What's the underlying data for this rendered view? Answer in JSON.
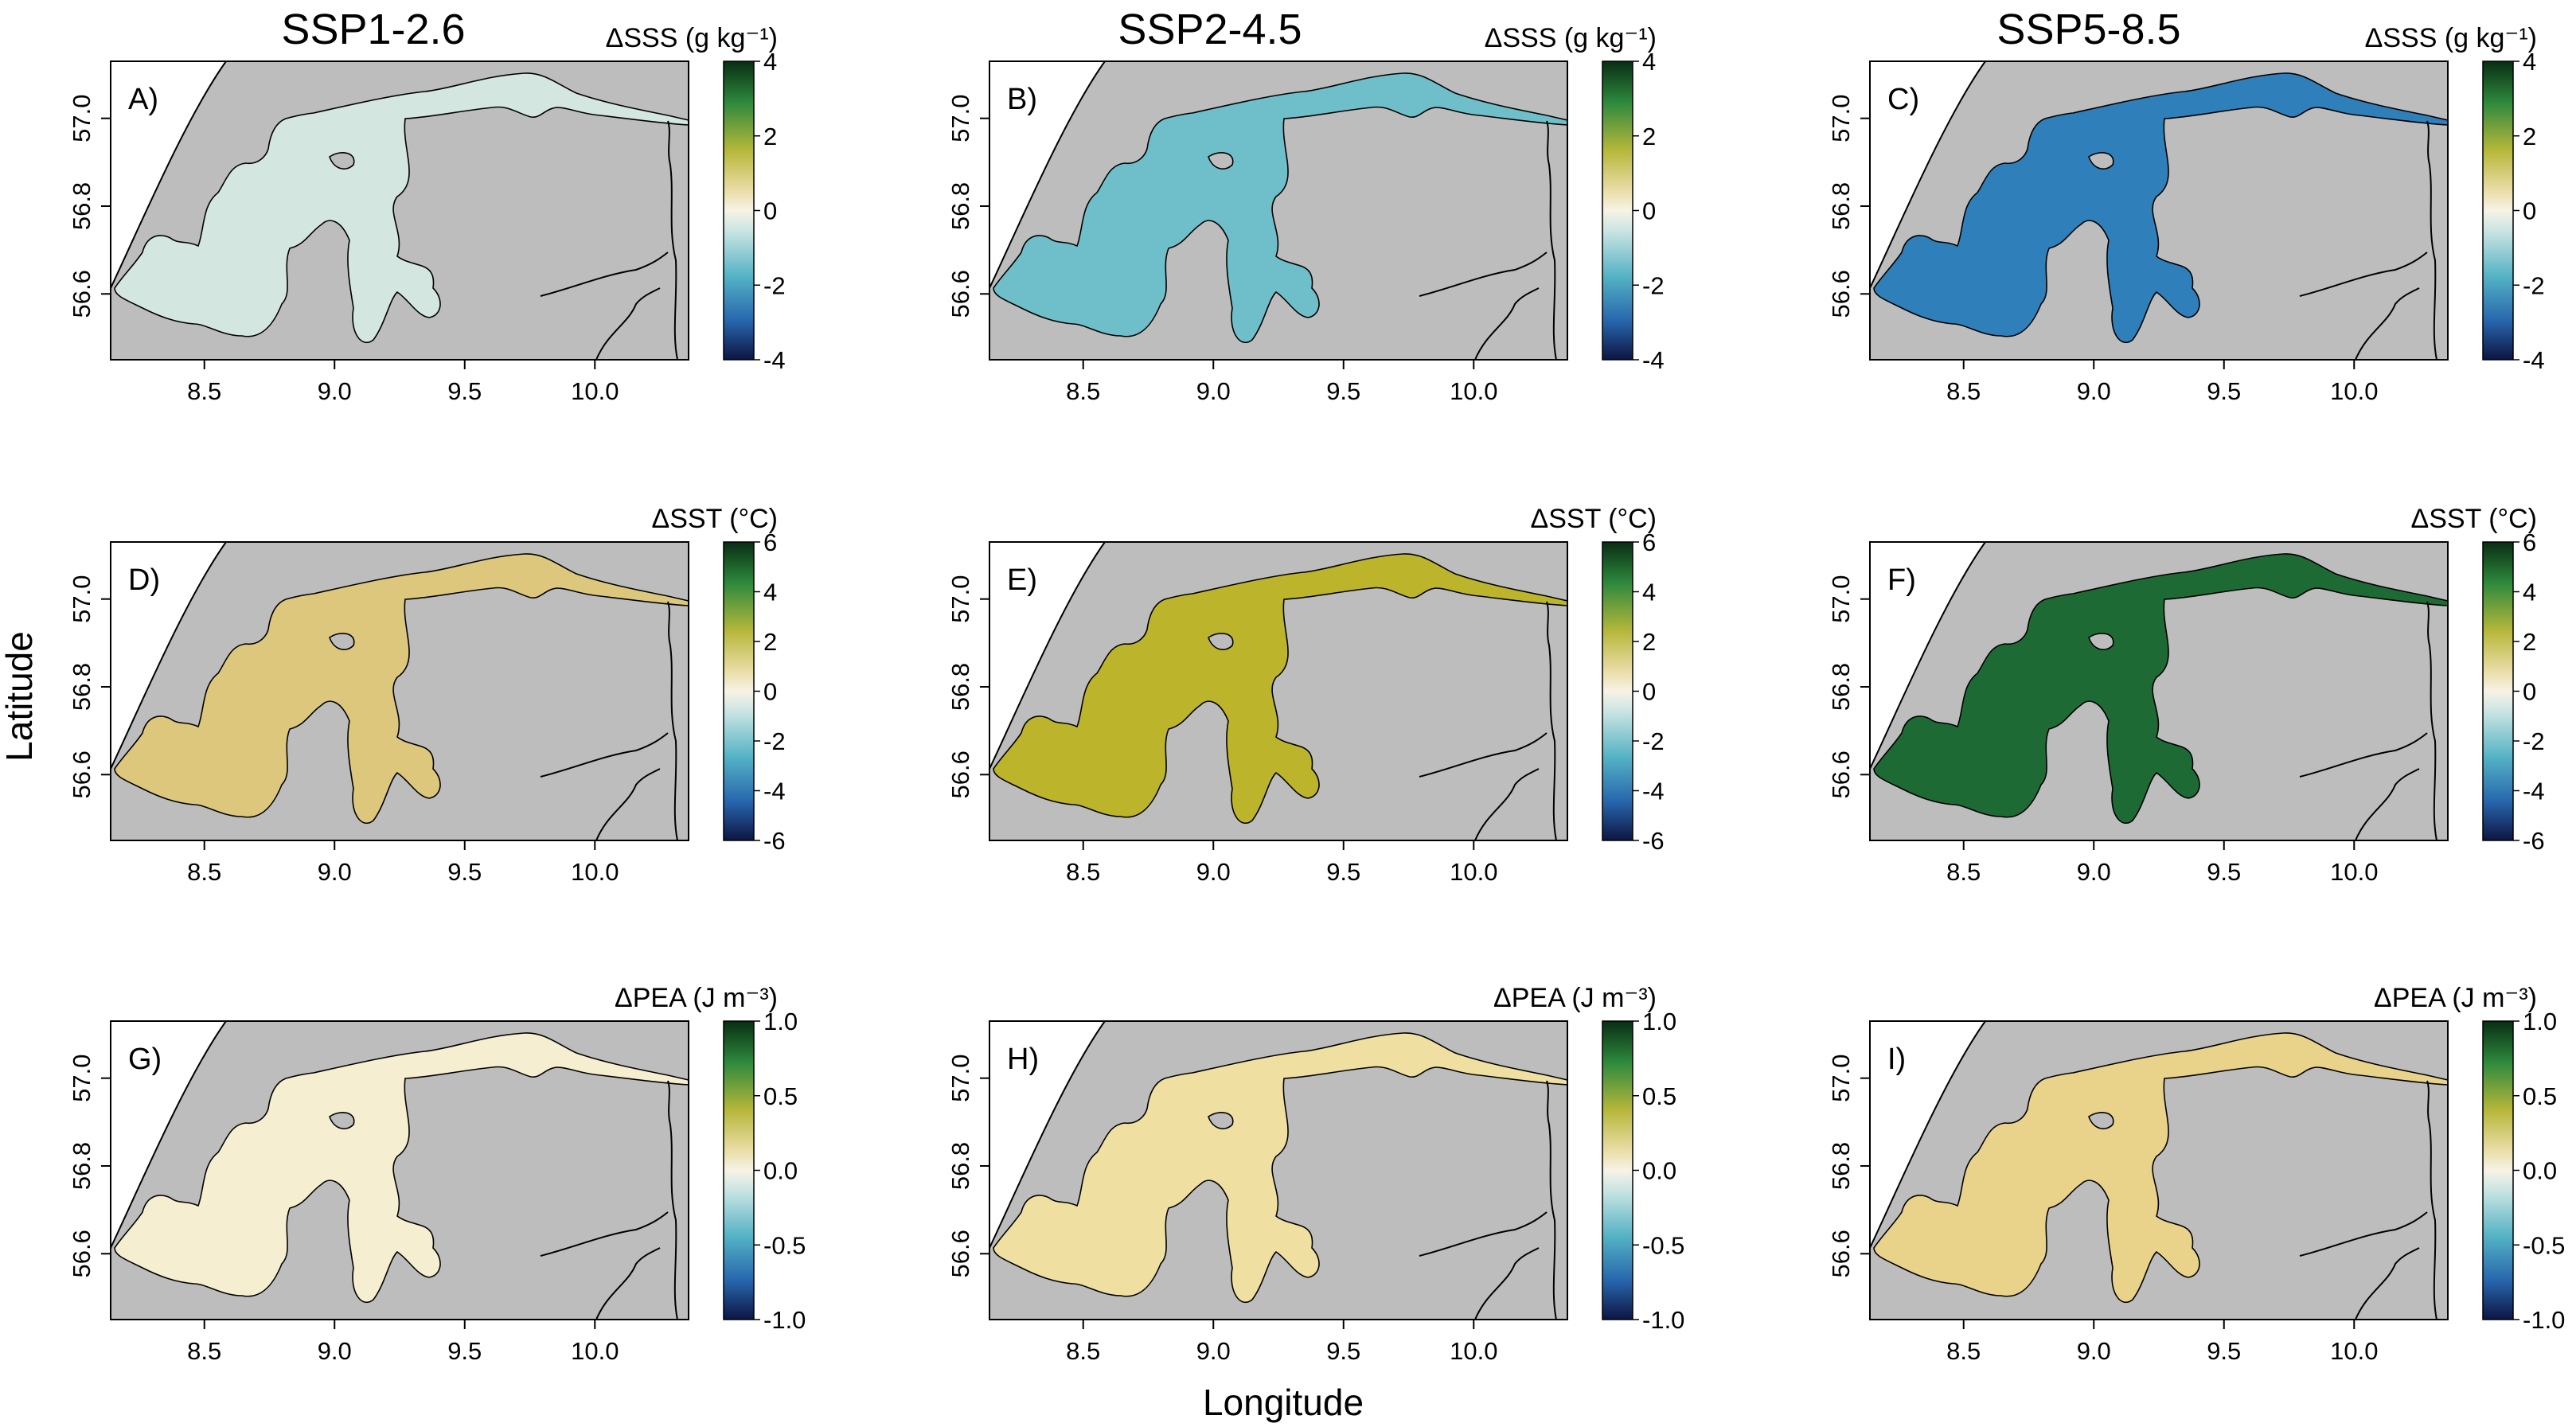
{
  "figure": {
    "column_titles": [
      "SSP1-2.6",
      "SSP2-4.5",
      "SSP5-8.5"
    ],
    "x_axis_label": "Longitude",
    "y_axis_label": "Latitude",
    "x_ticks": [
      "8.5",
      "9.0",
      "9.5",
      "10.0"
    ],
    "y_ticks": [
      "56.6",
      "56.8",
      "57.0"
    ],
    "colors": {
      "land": "#bdbdbd",
      "sea": "#ffffff",
      "outline": "#000000"
    }
  },
  "chart_data": [
    {
      "type": "heatmap",
      "panel": "A)",
      "scenario": "SSP1-2.6",
      "variable": "ΔSSS",
      "unit": "(g kg⁻¹)",
      "colorbar_ticks": [
        "4",
        "2",
        "0",
        "-2",
        "-4"
      ],
      "clim": [
        -4,
        4
      ],
      "mean_value": -0.6,
      "fill": "#d3e6df"
    },
    {
      "type": "heatmap",
      "panel": "B)",
      "scenario": "SSP2-4.5",
      "variable": "ΔSSS",
      "unit": "(g kg⁻¹)",
      "colorbar_ticks": [
        "4",
        "2",
        "0",
        "-2",
        "-4"
      ],
      "clim": [
        -4,
        4
      ],
      "mean_value": -1.5,
      "fill": "#6fbfca"
    },
    {
      "type": "heatmap",
      "panel": "C)",
      "scenario": "SSP5-8.5",
      "variable": "ΔSSS",
      "unit": "(g kg⁻¹)",
      "colorbar_ticks": [
        "4",
        "2",
        "0",
        "-2",
        "-4"
      ],
      "clim": [
        -4,
        4
      ],
      "mean_value": -2.5,
      "fill": "#2f7fba"
    },
    {
      "type": "heatmap",
      "panel": "D)",
      "scenario": "SSP1-2.6",
      "variable": "ΔSST",
      "unit": "(°C)",
      "colorbar_ticks": [
        "6",
        "4",
        "2",
        "0",
        "-2",
        "-4",
        "-6"
      ],
      "clim": [
        -6,
        6
      ],
      "mean_value": 1.5,
      "fill": "#dcc77c"
    },
    {
      "type": "heatmap",
      "panel": "E)",
      "scenario": "SSP2-4.5",
      "variable": "ΔSST",
      "unit": "(°C)",
      "colorbar_ticks": [
        "6",
        "4",
        "2",
        "0",
        "-2",
        "-4",
        "-6"
      ],
      "clim": [
        -6,
        6
      ],
      "mean_value": 2.2,
      "fill": "#bcb42a"
    },
    {
      "type": "heatmap",
      "panel": "F)",
      "scenario": "SSP5-8.5",
      "variable": "ΔSST",
      "unit": "(°C)",
      "colorbar_ticks": [
        "6",
        "4",
        "2",
        "0",
        "-2",
        "-4",
        "-6"
      ],
      "clim": [
        -6,
        6
      ],
      "mean_value": 4.6,
      "fill": "#1e6a34"
    },
    {
      "type": "heatmap",
      "panel": "G)",
      "scenario": "SSP1-2.6",
      "variable": "ΔPEA",
      "unit": "(J m⁻³)",
      "colorbar_ticks": [
        "1.0",
        "0.5",
        "0.0",
        "-0.5",
        "-1.0"
      ],
      "clim": [
        -1,
        1
      ],
      "mean_value": 0.05,
      "fill": "#f5eed0"
    },
    {
      "type": "heatmap",
      "panel": "H)",
      "scenario": "SSP2-4.5",
      "variable": "ΔPEA",
      "unit": "(J m⁻³)",
      "colorbar_ticks": [
        "1.0",
        "0.5",
        "0.0",
        "-0.5",
        "-1.0"
      ],
      "clim": [
        -1,
        1
      ],
      "mean_value": 0.15,
      "fill": "#efdfa0"
    },
    {
      "type": "heatmap",
      "panel": "I)",
      "scenario": "SSP5-8.5",
      "variable": "ΔPEA",
      "unit": "(J m⁻³)",
      "colorbar_ticks": [
        "1.0",
        "0.5",
        "0.0",
        "-0.5",
        "-1.0"
      ],
      "clim": [
        -1,
        1
      ],
      "mean_value": 0.25,
      "fill": "#e9d28a"
    }
  ]
}
